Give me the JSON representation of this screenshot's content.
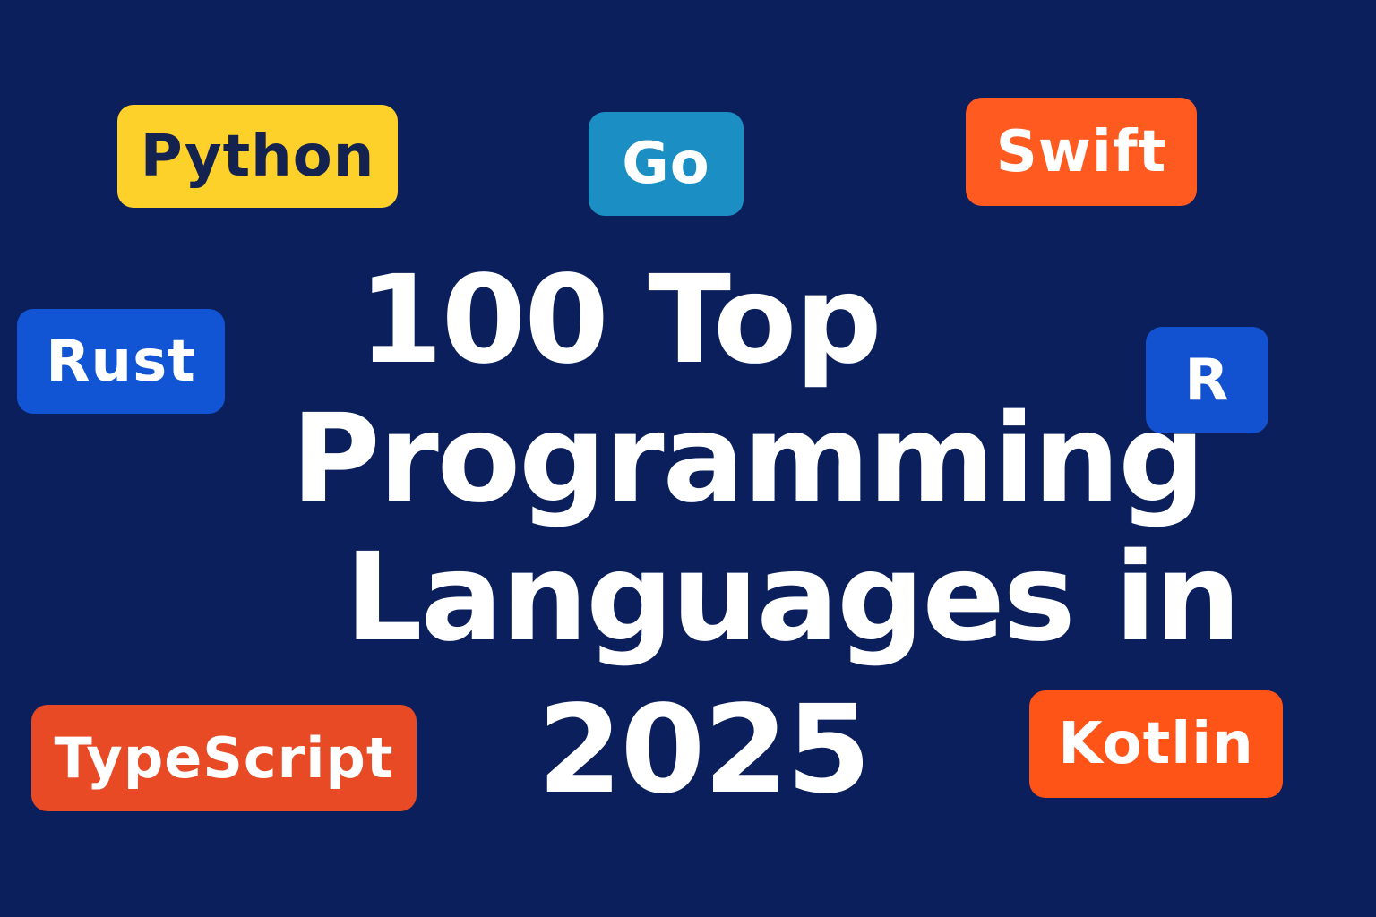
{
  "title": {
    "lines": [
      "100 Top",
      "Programming",
      "Languages in",
      "2025"
    ]
  },
  "badges": [
    {
      "label": "Python",
      "color": "#fdd12a",
      "text_color": "#14224f"
    },
    {
      "label": "Go",
      "color": "#1b8fc4",
      "text_color": "#ffffff"
    },
    {
      "label": "Swift",
      "color": "#ff5a1f",
      "text_color": "#ffffff"
    },
    {
      "label": "Rust",
      "color": "#1255d4",
      "text_color": "#ffffff"
    },
    {
      "label": "R",
      "color": "#1252d0",
      "text_color": "#ffffff"
    },
    {
      "label": "TypeScript",
      "color": "#e84a25",
      "text_color": "#ffffff"
    },
    {
      "label": "Kotlin",
      "color": "#ff5418",
      "text_color": "#ffffff"
    }
  ],
  "colors": {
    "background": "#0b1f5c",
    "title": "#ffffff"
  }
}
